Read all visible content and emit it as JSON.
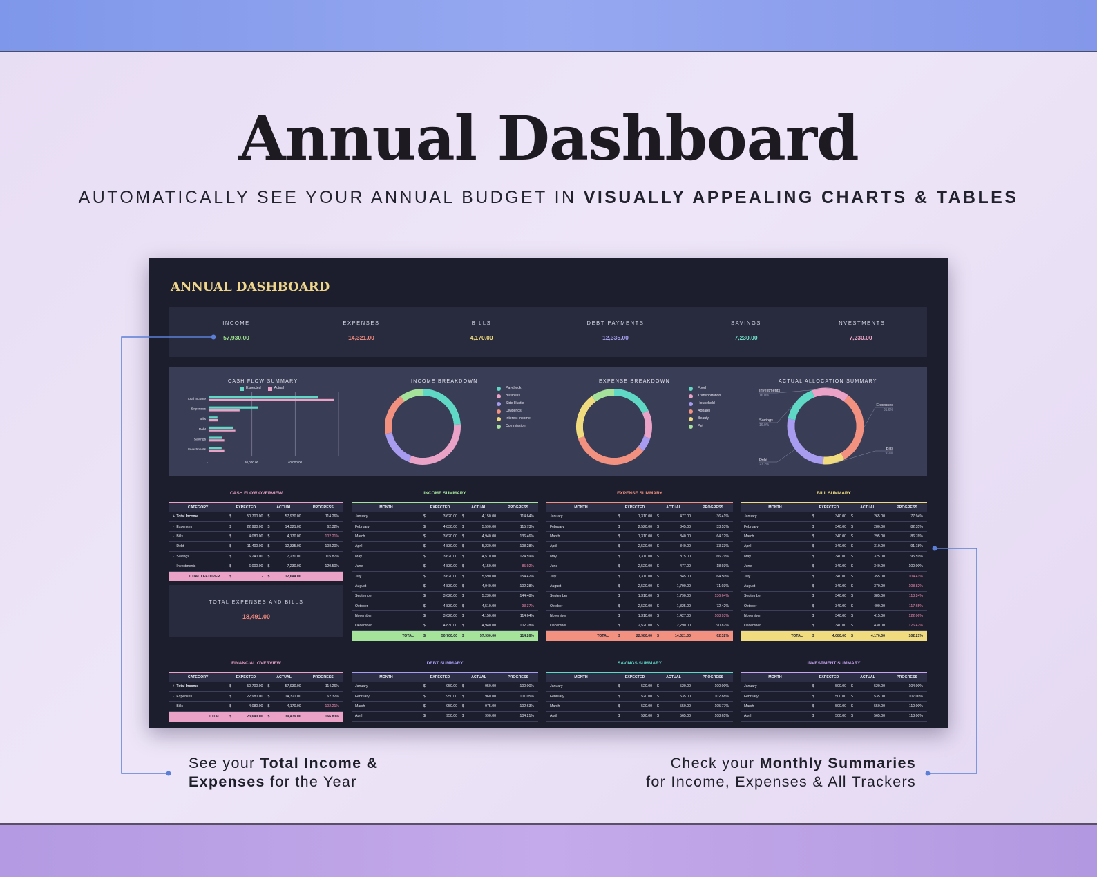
{
  "hero": {
    "title": "Annual Dashboard",
    "subtitle_plain": "AUTOMATICALLY SEE YOUR ANNUAL BUDGET IN",
    "subtitle_bold": "VISUALLY APPEALING CHARTS & TABLES"
  },
  "dashboard": {
    "title": "ANNUAL DASHBOARD",
    "kpis": [
      {
        "label": "INCOME",
        "value": "57,930.00",
        "color": "#9be08a"
      },
      {
        "label": "EXPENSES",
        "value": "14,321.00",
        "color": "#f28b7d"
      },
      {
        "label": "BILLS",
        "value": "4,170.00",
        "color": "#f2dc7a"
      },
      {
        "label": "DEBT PAYMENTS",
        "value": "12,335.00",
        "color": "#a9a2f0"
      },
      {
        "label": "SAVINGS",
        "value": "7,230.00",
        "color": "#6fe0c8"
      },
      {
        "label": "INVESTMENTS",
        "value": "7,230.00",
        "color": "#f0a8c8"
      }
    ],
    "total_expenses_bills": {
      "label": "TOTAL EXPENSES AND BILLS",
      "value": "18,491.00"
    }
  },
  "colors": {
    "teal": "#5fd9c6",
    "pink": "#eaa3c6",
    "lavender": "#a79cf0",
    "salmon": "#f2917f",
    "yellow": "#f0dc7e",
    "green": "#a6e39a",
    "purple": "#c9a4f0"
  },
  "chart_data": [
    {
      "type": "bar",
      "title": "CASH FLOW SUMMARY",
      "orientation": "horizontal",
      "categories": [
        "Total Income",
        "Expenses",
        "Bills",
        "Debt",
        "Savings",
        "Investments"
      ],
      "series": [
        {
          "name": "Expected",
          "values": [
            50700,
            22980,
            4080,
            11400,
            6240,
            6000
          ],
          "color": "#5fd9c6"
        },
        {
          "name": "Actual",
          "values": [
            57930,
            14321,
            4170,
            12335,
            7230,
            7230
          ],
          "color": "#eaa3c6"
        }
      ],
      "xticks": [
        "-",
        "20,000.00",
        "40,000.00"
      ],
      "xlim": [
        0,
        60000
      ],
      "grid": true,
      "legend": "top"
    },
    {
      "type": "pie",
      "donut": true,
      "title": "INCOME BREAKDOWN",
      "labels": [
        "Paycheck",
        "Business",
        "Side Hustle",
        "Dividends",
        "Interest Income",
        "Commission"
      ],
      "values": [
        24,
        32,
        16,
        18,
        0,
        10
      ],
      "colors": [
        "#5fd9c6",
        "#eaa3c6",
        "#a79cf0",
        "#f2917f",
        "#f0dc7e",
        "#a6e39a"
      ]
    },
    {
      "type": "pie",
      "donut": true,
      "title": "EXPENSE BREAKDOWN",
      "labels": [
        "Food",
        "Transportation",
        "Household",
        "Apparel",
        "Beauty",
        "Pet"
      ],
      "values": [
        18,
        12,
        6,
        34,
        20,
        10
      ],
      "colors": [
        "#5fd9c6",
        "#eaa3c6",
        "#a79cf0",
        "#f2917f",
        "#f0dc7e",
        "#a6e39a"
      ]
    },
    {
      "type": "pie",
      "donut": true,
      "title": "ACTUAL ALLOCATION SUMMARY",
      "labels": [
        "Investments",
        "Expenses",
        "Bills",
        "Debt",
        "Savings"
      ],
      "values": [
        16.0,
        31.6,
        9.2,
        27.2,
        16.0
      ],
      "pct_labels": [
        "16.0%",
        "31.6%",
        "9.2%",
        "27.2%",
        "16.0%"
      ],
      "colors": [
        "#eaa3c6",
        "#f2917f",
        "#f0dc7e",
        "#a79cf0",
        "#5fd9c6"
      ]
    }
  ],
  "tables": {
    "cash_flow": {
      "title": "CASH FLOW OVERVIEW",
      "headers": [
        "CATEGORY",
        "EXPECTED",
        "ACTUAL",
        "PROGRESS"
      ],
      "rows": [
        {
          "mark": "+",
          "c": "Total Income",
          "e": "50,700.00",
          "a": "57,930.00",
          "p": "114.26%"
        },
        {
          "mark": "-",
          "c": "Expenses",
          "e": "22,980.00",
          "a": "14,321.00",
          "p": "62.32%"
        },
        {
          "mark": "-",
          "c": "Bills",
          "e": "4,080.00",
          "a": "4,170.00",
          "p": "102.21%"
        },
        {
          "mark": "-",
          "c": "Debt",
          "e": "11,400.00",
          "a": "12,335.00",
          "p": "108.20%"
        },
        {
          "mark": "-",
          "c": "Savings",
          "e": "6,240.00",
          "a": "7,230.00",
          "p": "115.87%"
        },
        {
          "mark": "-",
          "c": "Investments",
          "e": "6,000.00",
          "a": "7,230.00",
          "p": "120.50%"
        }
      ],
      "total": {
        "label": "TOTAL LEFTOVER",
        "e": "-",
        "a": "12,644.00",
        "p": ""
      }
    },
    "financial": {
      "title": "FINANCIAL OVERVIEW",
      "headers": [
        "CATEGORY",
        "EXPECTED",
        "ACTUAL",
        "PROGRESS"
      ],
      "rows": [
        {
          "mark": "+",
          "c": "Total Income",
          "e": "50,700.00",
          "a": "57,930.00",
          "p": "114.26%"
        },
        {
          "mark": "-",
          "c": "Expenses",
          "e": "22,980.00",
          "a": "14,321.00",
          "p": "62.32%"
        },
        {
          "mark": "-",
          "c": "Bills",
          "e": "4,080.00",
          "a": "4,170.00",
          "p": "102.21%"
        }
      ],
      "total": {
        "label": "TOTAL",
        "e": "23,640.00",
        "a": "39,439.00",
        "p": "166.83%"
      }
    },
    "income": {
      "title": "INCOME SUMMARY",
      "headers": [
        "MONTH",
        "EXPECTED",
        "ACTUAL",
        "PROGRESS"
      ],
      "rows": [
        {
          "m": "January",
          "e": "3,620.00",
          "a": "4,150.00",
          "p": "114.64%"
        },
        {
          "m": "February",
          "e": "4,830.00",
          "a": "5,590.00",
          "p": "115.73%"
        },
        {
          "m": "March",
          "e": "3,620.00",
          "a": "4,940.00",
          "p": "136.46%"
        },
        {
          "m": "April",
          "e": "4,830.00",
          "a": "5,230.00",
          "p": "108.28%"
        },
        {
          "m": "May",
          "e": "3,620.00",
          "a": "4,510.00",
          "p": "124.59%"
        },
        {
          "m": "June",
          "e": "4,830.00",
          "a": "4,150.00",
          "p": "85.92%"
        },
        {
          "m": "July",
          "e": "3,620.00",
          "a": "5,590.00",
          "p": "154.42%"
        },
        {
          "m": "August",
          "e": "4,830.00",
          "a": "4,940.00",
          "p": "102.28%"
        },
        {
          "m": "September",
          "e": "3,620.00",
          "a": "5,230.00",
          "p": "144.48%"
        },
        {
          "m": "October",
          "e": "4,830.00",
          "a": "4,510.00",
          "p": "93.37%"
        },
        {
          "m": "November",
          "e": "3,620.00",
          "a": "4,150.00",
          "p": "114.64%"
        },
        {
          "m": "December",
          "e": "4,830.00",
          "a": "4,940.00",
          "p": "102.28%"
        }
      ],
      "total": {
        "label": "TOTAL",
        "e": "50,700.00",
        "a": "57,930.00",
        "p": "114.26%"
      }
    },
    "expense": {
      "title": "EXPENSE SUMMARY",
      "headers": [
        "MONTH",
        "EXPECTED",
        "ACTUAL",
        "PROGRESS"
      ],
      "rows": [
        {
          "m": "January",
          "e": "1,310.00",
          "a": "477.00",
          "p": "36.41%"
        },
        {
          "m": "February",
          "e": "2,520.00",
          "a": "845.00",
          "p": "33.53%"
        },
        {
          "m": "March",
          "e": "1,310.00",
          "a": "840.00",
          "p": "64.12%"
        },
        {
          "m": "April",
          "e": "2,520.00",
          "a": "840.00",
          "p": "33.33%"
        },
        {
          "m": "May",
          "e": "1,310.00",
          "a": "875.00",
          "p": "66.79%"
        },
        {
          "m": "June",
          "e": "2,520.00",
          "a": "477.00",
          "p": "18.93%"
        },
        {
          "m": "July",
          "e": "1,310.00",
          "a": "845.00",
          "p": "64.50%"
        },
        {
          "m": "August",
          "e": "2,520.00",
          "a": "1,790.00",
          "p": "71.03%"
        },
        {
          "m": "September",
          "e": "1,310.00",
          "a": "1,790.00",
          "p": "136.64%"
        },
        {
          "m": "October",
          "e": "2,520.00",
          "a": "1,825.00",
          "p": "72.42%"
        },
        {
          "m": "November",
          "e": "1,310.00",
          "a": "1,427.00",
          "p": "108.93%"
        },
        {
          "m": "December",
          "e": "2,520.00",
          "a": "2,290.00",
          "p": "90.87%"
        }
      ],
      "total": {
        "label": "TOTAL",
        "e": "22,980.00",
        "a": "14,321.00",
        "p": "62.32%"
      }
    },
    "bill": {
      "title": "BILL SUMMARY",
      "headers": [
        "MONTH",
        "EXPECTED",
        "ACTUAL",
        "PROGRESS"
      ],
      "rows": [
        {
          "m": "January",
          "e": "340.00",
          "a": "265.00",
          "p": "77.94%"
        },
        {
          "m": "February",
          "e": "340.00",
          "a": "280.00",
          "p": "82.35%"
        },
        {
          "m": "March",
          "e": "340.00",
          "a": "295.00",
          "p": "86.76%"
        },
        {
          "m": "April",
          "e": "340.00",
          "a": "310.00",
          "p": "91.18%"
        },
        {
          "m": "May",
          "e": "340.00",
          "a": "325.00",
          "p": "95.59%"
        },
        {
          "m": "June",
          "e": "340.00",
          "a": "340.00",
          "p": "100.00%"
        },
        {
          "m": "July",
          "e": "340.00",
          "a": "355.00",
          "p": "104.41%"
        },
        {
          "m": "August",
          "e": "340.00",
          "a": "370.00",
          "p": "108.82%"
        },
        {
          "m": "September",
          "e": "340.00",
          "a": "385.00",
          "p": "113.24%"
        },
        {
          "m": "October",
          "e": "340.00",
          "a": "400.00",
          "p": "117.65%"
        },
        {
          "m": "November",
          "e": "340.00",
          "a": "415.00",
          "p": "122.06%"
        },
        {
          "m": "December",
          "e": "340.00",
          "a": "430.00",
          "p": "126.47%"
        }
      ],
      "total": {
        "label": "TOTAL",
        "e": "4,080.00",
        "a": "4,170.00",
        "p": "102.21%"
      }
    },
    "debt": {
      "title": "DEBT SUMMARY",
      "headers": [
        "MONTH",
        "EXPECTED",
        "ACTUAL",
        "PROGRESS"
      ],
      "rows": [
        {
          "m": "January",
          "e": "950.00",
          "a": "950.00",
          "p": "100.00%"
        },
        {
          "m": "February",
          "e": "950.00",
          "a": "960.00",
          "p": "101.05%"
        },
        {
          "m": "March",
          "e": "950.00",
          "a": "975.00",
          "p": "102.63%"
        },
        {
          "m": "April",
          "e": "950.00",
          "a": "990.00",
          "p": "104.21%"
        }
      ]
    },
    "savings": {
      "title": "SAVINGS SUMMARY",
      "headers": [
        "MONTH",
        "EXPECTED",
        "ACTUAL",
        "PROGRESS"
      ],
      "rows": [
        {
          "m": "January",
          "e": "520.00",
          "a": "520.00",
          "p": "100.00%"
        },
        {
          "m": "February",
          "e": "520.00",
          "a": "535.00",
          "p": "102.88%"
        },
        {
          "m": "March",
          "e": "520.00",
          "a": "550.00",
          "p": "105.77%"
        },
        {
          "m": "April",
          "e": "520.00",
          "a": "565.00",
          "p": "108.65%"
        }
      ]
    },
    "investment": {
      "title": "INVESTMENT SUMMARY",
      "headers": [
        "MONTH",
        "EXPECTED",
        "ACTUAL",
        "PROGRESS"
      ],
      "rows": [
        {
          "m": "January",
          "e": "500.00",
          "a": "520.00",
          "p": "104.00%"
        },
        {
          "m": "February",
          "e": "500.00",
          "a": "535.00",
          "p": "107.00%"
        },
        {
          "m": "March",
          "e": "500.00",
          "a": "550.00",
          "p": "110.00%"
        },
        {
          "m": "April",
          "e": "500.00",
          "a": "565.00",
          "p": "113.00%"
        }
      ]
    }
  },
  "captions": {
    "left": {
      "p1": "See your ",
      "b1": "Total Income &",
      "b2": "Expenses",
      "p2": " for the Year"
    },
    "right": {
      "p1": "Check your ",
      "b1": "Monthly Summaries",
      "p2": "for Income, Expenses & All Trackers"
    }
  }
}
